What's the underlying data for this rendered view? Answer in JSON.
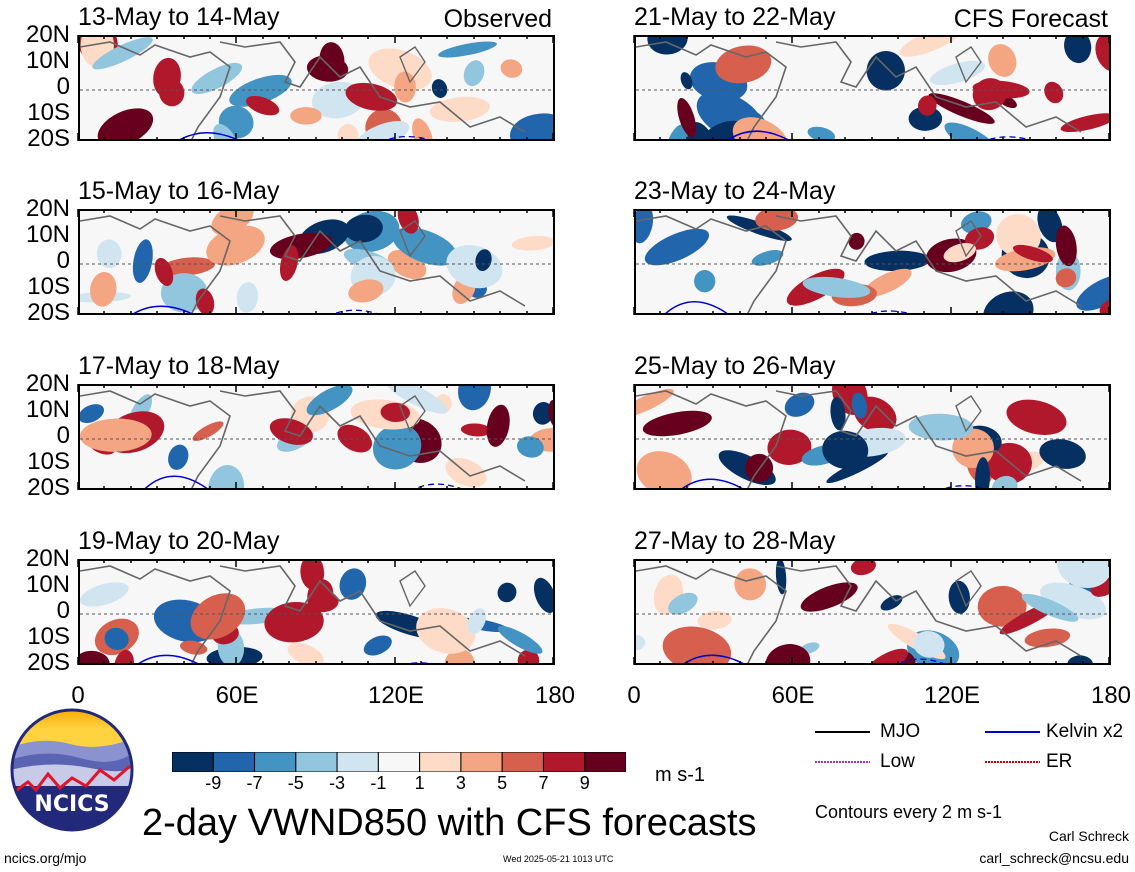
{
  "panels": [
    {
      "title": "13-May to 14-May",
      "tag": "Observed",
      "col": 0,
      "row": 0
    },
    {
      "title": "15-May to 16-May",
      "tag": "",
      "col": 0,
      "row": 1
    },
    {
      "title": "17-May to 18-May",
      "tag": "",
      "col": 0,
      "row": 2
    },
    {
      "title": "19-May to 20-May",
      "tag": "",
      "col": 0,
      "row": 3
    },
    {
      "title": "21-May to 22-May",
      "tag": "CFS Forecast",
      "col": 1,
      "row": 0
    },
    {
      "title": "23-May to 24-May",
      "tag": "",
      "col": 1,
      "row": 1
    },
    {
      "title": "25-May to 26-May",
      "tag": "",
      "col": 1,
      "row": 2
    },
    {
      "title": "27-May to 28-May",
      "tag": "",
      "col": 1,
      "row": 3
    }
  ],
  "lat_labels": [
    "20N",
    "10N",
    "0",
    "10S",
    "20S"
  ],
  "lon_labels": [
    "0",
    "60E",
    "120E",
    "180"
  ],
  "colorbar": {
    "colors": [
      "#053061",
      "#2166ac",
      "#4393c3",
      "#92c5de",
      "#d1e5f0",
      "#f7f7f7",
      "#fddbc7",
      "#f4a582",
      "#d6604d",
      "#b2182b",
      "#67001f"
    ],
    "labels": [
      "-9",
      "-7",
      "-5",
      "-3",
      "-1",
      "1",
      "3",
      "5",
      "7",
      "9"
    ],
    "unit": "m s-1"
  },
  "legend": {
    "items": [
      {
        "label": "MJO",
        "color": "#000000"
      },
      {
        "label": "Kelvin x2",
        "color": "#0000cc"
      },
      {
        "label": "Low",
        "color": "#9933cc"
      },
      {
        "label": "ER",
        "color": "#dd0000"
      }
    ],
    "contours_note": "Contours every 2 m s-1"
  },
  "logo_text": "NCICS",
  "main_title": "2-day VWND850 with CFS forecasts",
  "footer": {
    "left": "ncics.org/mjo",
    "center": "Wed 2025-05-21 1013 UTC",
    "author": "Carl Schreck",
    "email": "carl_schreck@ncsu.edu"
  }
}
